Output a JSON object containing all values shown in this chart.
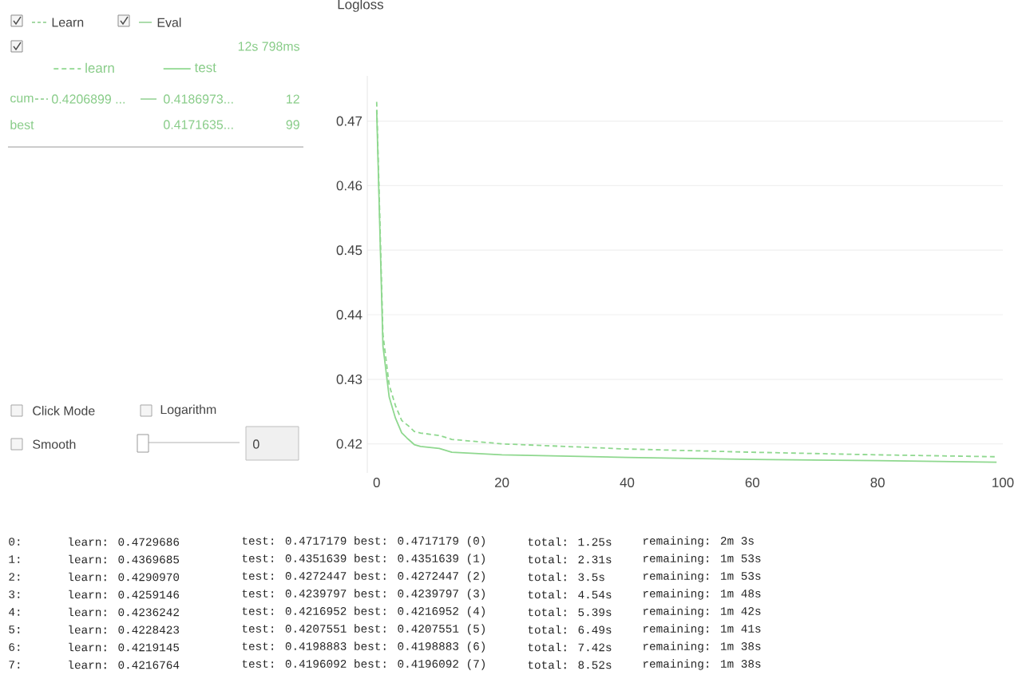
{
  "chart_data": {
    "type": "line",
    "title": "Logloss",
    "x": [
      0,
      1,
      2,
      3,
      4,
      5,
      6,
      7,
      10,
      12,
      20,
      30,
      40,
      60,
      80,
      99
    ],
    "series": [
      {
        "name": "learn",
        "color": "#8fd88f",
        "line_style": "dashed",
        "values": [
          0.4729686,
          0.4369685,
          0.429097,
          0.4259146,
          0.4236242,
          0.4228423,
          0.4219145,
          0.4216764,
          0.4213,
          0.4206899,
          0.42,
          0.4196,
          0.4192,
          0.4187,
          0.4183,
          0.418
        ]
      },
      {
        "name": "test",
        "color": "#8fd88f",
        "line_style": "solid",
        "values": [
          0.4717179,
          0.4351639,
          0.4272447,
          0.4239797,
          0.4216952,
          0.4207551,
          0.4198883,
          0.4196092,
          0.4193,
          0.4186973,
          0.4183,
          0.4181,
          0.4179,
          0.4176,
          0.4174,
          0.4171635
        ]
      }
    ],
    "xlim": [
      -1.5,
      100
    ],
    "ylim": [
      0.4155,
      0.477
    ],
    "xticks": [
      0,
      20,
      40,
      60,
      80,
      100
    ],
    "yticks": [
      0.42,
      0.43,
      0.44,
      0.45,
      0.46,
      0.47
    ],
    "grid": "y",
    "legend": "left",
    "annotations": [
      "Learn",
      "Eval",
      "12s 798ms",
      "cum",
      "0.4206899 ...",
      "0.4186973...",
      "12",
      "best",
      "0.4171635...",
      "99",
      "Click Mode",
      "Logarithm",
      "Smooth",
      "0",
      "0:",
      "learn: 0.4729686",
      "test: 0.4717179 best: 0.4717179 (0)",
      "total: 1.25s",
      "remaining: 2m 3s",
      "1:",
      "learn: 0.4369685",
      "test: 0.4351639 best: 0.4351639 (1)",
      "total: 2.31s",
      "remaining: 1m 53s",
      "2:",
      "learn: 0.4290970",
      "test: 0.4272447 best: 0.4272447 (2)",
      "total: 3.5s",
      "remaining: 1m 53s",
      "3:",
      "learn: 0.4259146",
      "test: 0.4239797 best: 0.4239797 (3)",
      "total: 4.54s",
      "remaining: 1m 48s",
      "4:",
      "learn: 0.4236242",
      "test: 0.4216952 best: 0.4216952 (4)",
      "total: 5.39s",
      "remaining: 1m 42s",
      "5:",
      "learn: 0.4228423",
      "test: 0.4207551 best: 0.4207551 (5)",
      "total: 6.49s",
      "remaining: 1m 41s",
      "6:",
      "learn: 0.4219145",
      "test: 0.4198883 best: 0.4198883 (6)",
      "total: 7.42s",
      "remaining: 1m 38s",
      "7:",
      "learn: 0.4216764",
      "test: 0.4196092 best: 0.4196092 (7)",
      "total: 8.52s",
      "remaining: 1m 38s"
    ]
  }
}
